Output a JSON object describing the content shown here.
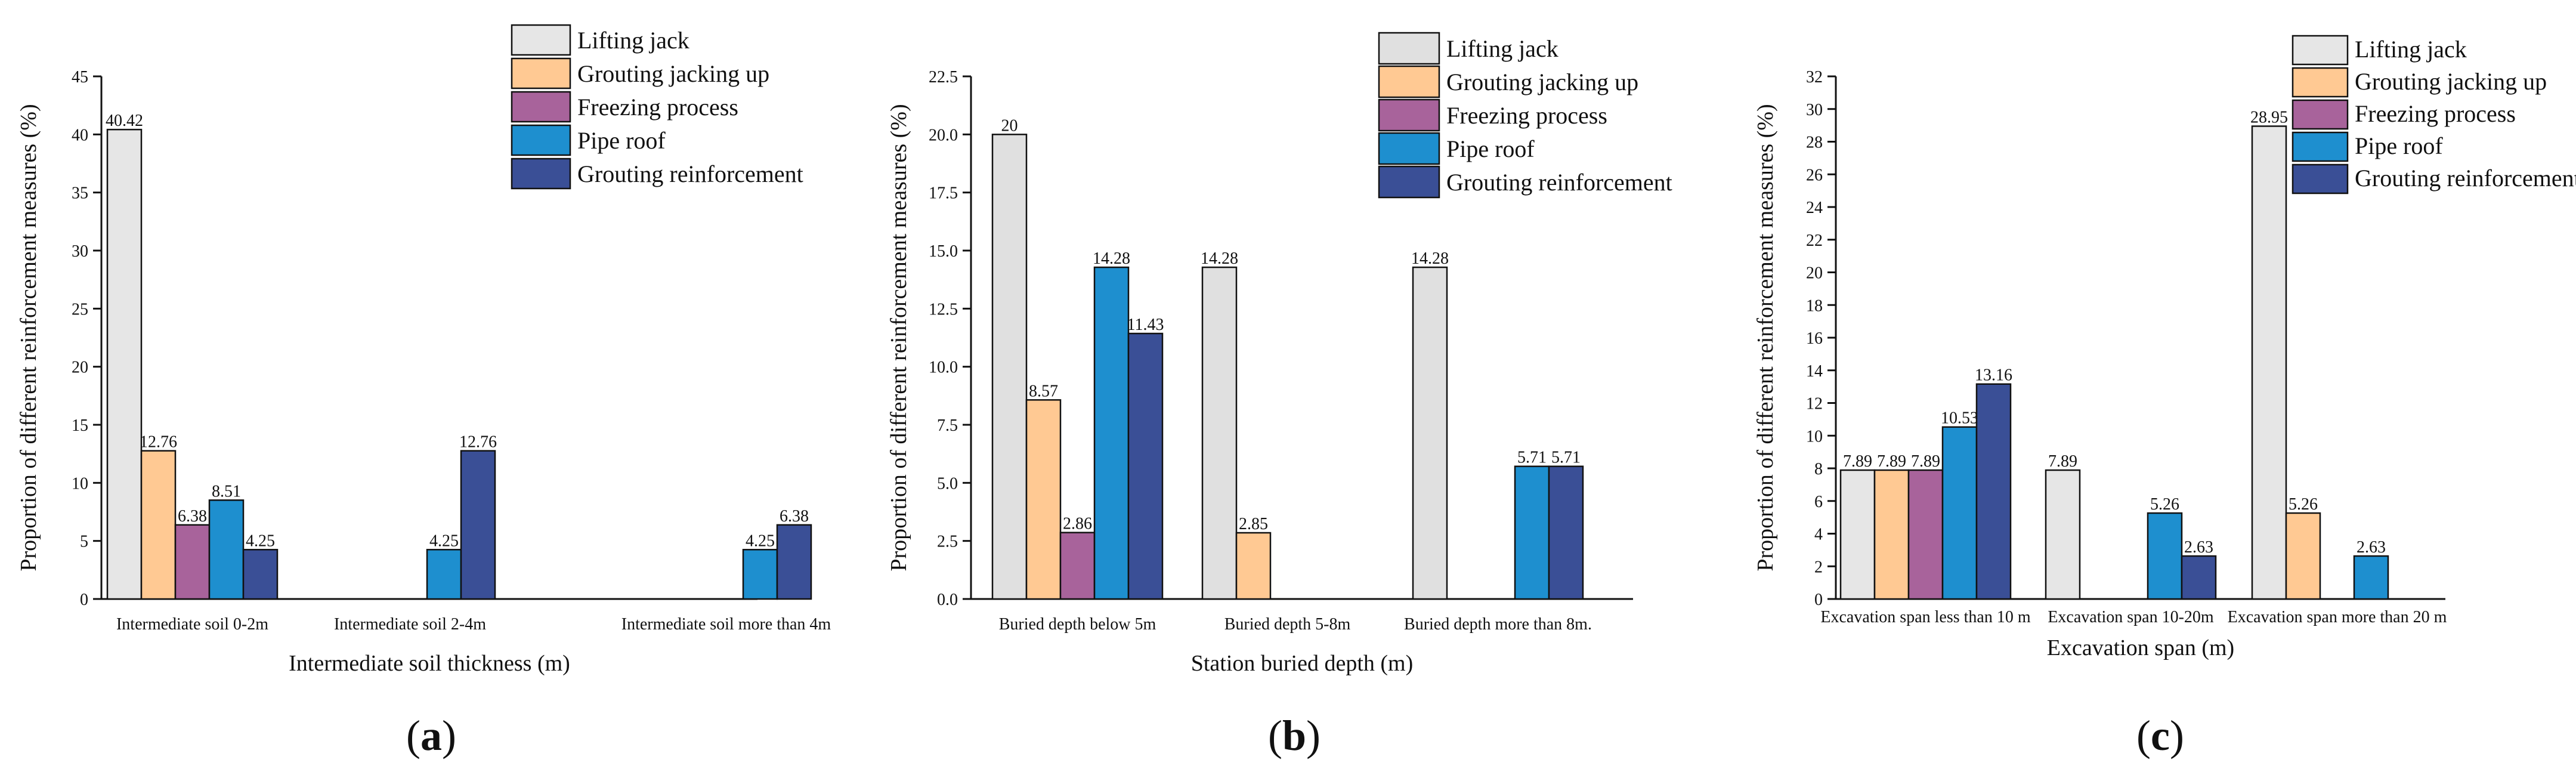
{
  "chart_data": [
    {
      "type": "bar",
      "panel_label": "(a)",
      "title": "",
      "xlabel": "Intermediate soil thickness (m)",
      "ylabel": "Proportion of different reinforcement measures (%)",
      "ylim": [
        0,
        45
      ],
      "yticks": [
        0,
        5,
        10,
        15,
        20,
        25,
        30,
        35,
        40,
        45
      ],
      "ytick_labels": [
        "0",
        "5",
        "10",
        "15",
        "20",
        "25",
        "30",
        "35",
        "40",
        "45"
      ],
      "categories": [
        "Intermediate soil 0-2m",
        "Intermediate soil 2-4m",
        "Intermediate soil more than 4m"
      ],
      "series": [
        {
          "name": "Lifting jack",
          "color": "#e6e6e6",
          "values": [
            40.42,
            null,
            null
          ],
          "labels": [
            "40.42",
            null,
            null
          ]
        },
        {
          "name": "Grouting jacking up",
          "color": "#ffc993",
          "values": [
            12.76,
            null,
            null
          ],
          "labels": [
            "12.76",
            null,
            null
          ]
        },
        {
          "name": "Freezing process",
          "color": "#a8639b",
          "values": [
            6.38,
            null,
            null
          ],
          "labels": [
            "6.38",
            null,
            null
          ]
        },
        {
          "name": "Pipe roof",
          "color": "#1e8fcf",
          "values": [
            8.51,
            4.25,
            4.25
          ],
          "labels": [
            "8.51",
            "4.25",
            "4.25"
          ]
        },
        {
          "name": "Grouting reinforcement",
          "color": "#3a4f96",
          "values": [
            4.25,
            12.76,
            6.38
          ],
          "labels": [
            "4.25",
            "12.76",
            "6.38"
          ]
        }
      ],
      "legend_position": "top-right"
    },
    {
      "type": "bar",
      "panel_label": "(b)",
      "title": "",
      "xlabel": "Station buried depth (m)",
      "ylabel": "Proportion of different reinforcement measures (%)",
      "ylim": [
        0,
        22.5
      ],
      "yticks": [
        0,
        2.5,
        5,
        7.5,
        10,
        12.5,
        15,
        17.5,
        20,
        22.5
      ],
      "ytick_labels": [
        "0.0",
        "2.5",
        "5.0",
        "7.5",
        "10.0",
        "12.5",
        "15.0",
        "17.5",
        "20.0",
        "22.5"
      ],
      "categories": [
        "Buried depth below 5m",
        "Buried depth 5-8m",
        "Buried depth more than 8m."
      ],
      "series": [
        {
          "name": "Lifting jack",
          "color": "#e0e0e0",
          "values": [
            20,
            14.28,
            14.28
          ],
          "labels": [
            "20",
            "14.28",
            "14.28"
          ]
        },
        {
          "name": "Grouting jacking up",
          "color": "#ffc993",
          "values": [
            8.57,
            2.85,
            null
          ],
          "labels": [
            "8.57",
            "2.85",
            null
          ]
        },
        {
          "name": "Freezing process",
          "color": "#a8639b",
          "values": [
            2.86,
            null,
            null
          ],
          "labels": [
            "2.86",
            null,
            null
          ]
        },
        {
          "name": "Pipe roof",
          "color": "#1e8fcf",
          "values": [
            14.28,
            null,
            5.71
          ],
          "labels": [
            "14.28",
            null,
            "5.71"
          ]
        },
        {
          "name": "Grouting reinforcement",
          "color": "#3a4f96",
          "values": [
            11.43,
            null,
            5.71
          ],
          "labels": [
            "11.43",
            null,
            "5.71"
          ]
        }
      ],
      "legend_position": "top-right"
    },
    {
      "type": "bar",
      "panel_label": "(c)",
      "title": "",
      "xlabel": "Excavation span (m)",
      "ylabel": "Proportion of different reinforcement measures (%)",
      "ylim": [
        0,
        32
      ],
      "yticks": [
        0,
        2,
        4,
        6,
        8,
        10,
        12,
        14,
        16,
        18,
        20,
        22,
        24,
        26,
        28,
        30,
        32
      ],
      "ytick_labels": [
        "0",
        "2",
        "4",
        "6",
        "8",
        "10",
        "12",
        "14",
        "16",
        "18",
        "20",
        "22",
        "24",
        "26",
        "28",
        "30",
        "32"
      ],
      "categories": [
        "Excavation span less than 10 m",
        "Excavation span 10-20m",
        "Excavation span more than 20 m"
      ],
      "series": [
        {
          "name": "Lifting jack",
          "color": "#e6e6e6",
          "values": [
            7.89,
            7.89,
            28.95
          ],
          "labels": [
            "7.89",
            "7.89",
            "28.95"
          ]
        },
        {
          "name": "Grouting jacking up",
          "color": "#ffc993",
          "values": [
            7.89,
            null,
            5.26
          ],
          "labels": [
            "7.89",
            null,
            "5.26"
          ]
        },
        {
          "name": "Freezing process",
          "color": "#a8639b",
          "values": [
            7.89,
            null,
            null
          ],
          "labels": [
            "7.89",
            null,
            null
          ]
        },
        {
          "name": "Pipe roof",
          "color": "#1e8fcf",
          "values": [
            10.53,
            5.26,
            2.63
          ],
          "labels": [
            "10.53",
            "5.26",
            "2.63"
          ]
        },
        {
          "name": "Grouting reinforcement",
          "color": "#3a4f96",
          "values": [
            13.16,
            2.63,
            null
          ],
          "labels": [
            "13.16",
            "2.63",
            null
          ]
        }
      ],
      "legend_position": "top-right"
    }
  ]
}
